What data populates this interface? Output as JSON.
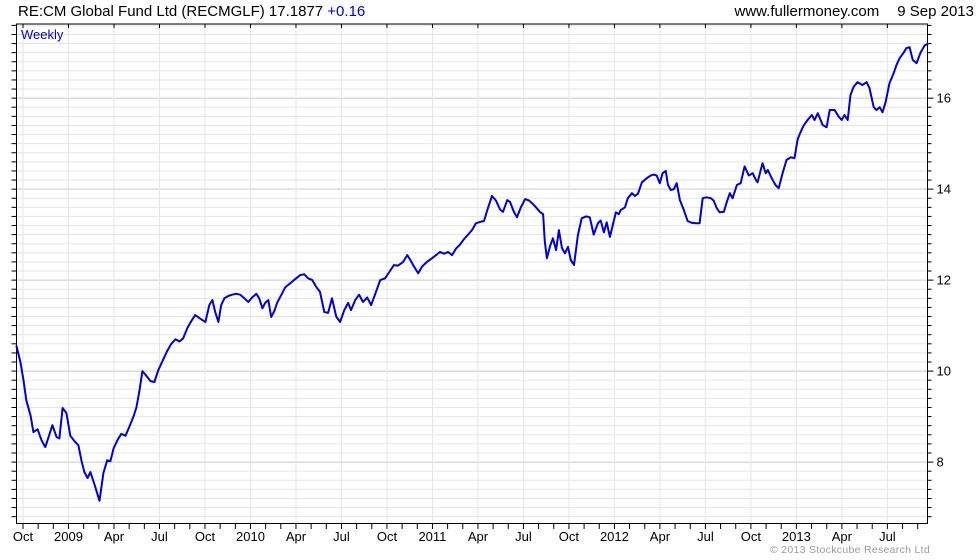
{
  "header": {
    "title": "RE:CM Global Fund Ltd (RECMGLF) 17.1877",
    "change": "+0.16",
    "website": "www.fullermoney.com",
    "date": "9 Sep 2013"
  },
  "chart": {
    "frequency_label": "Weekly",
    "copyright": "© 2013 Stockcube Research Ltd"
  },
  "colors": {
    "line": "#0000cc",
    "grid_minor": "#e5e5e5",
    "grid_major": "#c9c9c9",
    "axis": "#000000",
    "tick_label": "#000000"
  },
  "chart_data": {
    "type": "line",
    "title": "RE:CM Global Fund Ltd (RECMGLF) weekly price",
    "legend": "Weekly",
    "last_value": 17.1877,
    "change": 0.16,
    "x_unit": "weeks since late Sep 2008",
    "x_axis": {
      "total_weeks": 259,
      "month_tick_first_week": 1.85,
      "month_tick_step_weeks": 4.3113,
      "month_tick_count": 60,
      "labels": [
        {
          "label": "Oct",
          "month_index": 0
        },
        {
          "label": "2009",
          "month_index": 3
        },
        {
          "label": "Apr",
          "month_index": 6
        },
        {
          "label": "Jul",
          "month_index": 9
        },
        {
          "label": "Oct",
          "month_index": 12
        },
        {
          "label": "2010",
          "month_index": 15
        },
        {
          "label": "Apr",
          "month_index": 18
        },
        {
          "label": "Jul",
          "month_index": 21
        },
        {
          "label": "Oct",
          "month_index": 24
        },
        {
          "label": "2011",
          "month_index": 27
        },
        {
          "label": "Apr",
          "month_index": 30
        },
        {
          "label": "Jul",
          "month_index": 33
        },
        {
          "label": "Oct",
          "month_index": 36
        },
        {
          "label": "2012",
          "month_index": 39
        },
        {
          "label": "Apr",
          "month_index": 42
        },
        {
          "label": "Jul",
          "month_index": 45
        },
        {
          "label": "Oct",
          "month_index": 48
        },
        {
          "label": "2013",
          "month_index": 51
        },
        {
          "label": "Apr",
          "month_index": 54
        },
        {
          "label": "Jul",
          "month_index": 57
        }
      ]
    },
    "y_axis": {
      "min": 6.65,
      "max": 17.63,
      "major_ticks": [
        8,
        10,
        12,
        14,
        16
      ],
      "minor_step": 0.2,
      "grid": true
    },
    "points": [
      [
        0,
        10.55
      ],
      [
        1.1,
        10.2
      ],
      [
        2,
        9.8
      ],
      [
        2.8,
        9.36
      ],
      [
        4,
        9.02
      ],
      [
        4.8,
        8.66
      ],
      [
        6,
        8.72
      ],
      [
        7.1,
        8.48
      ],
      [
        8.2,
        8.33
      ],
      [
        9.4,
        8.62
      ],
      [
        10.2,
        8.81
      ],
      [
        11.4,
        8.55
      ],
      [
        12.2,
        8.52
      ],
      [
        13.1,
        9.19
      ],
      [
        14.2,
        9.08
      ],
      [
        15.3,
        8.58
      ],
      [
        16.5,
        8.46
      ],
      [
        17.6,
        8.37
      ],
      [
        18.5,
        8.02
      ],
      [
        19.3,
        7.78
      ],
      [
        20.2,
        7.65
      ],
      [
        21,
        7.78
      ],
      [
        22.2,
        7.5
      ],
      [
        23.6,
        7.15
      ],
      [
        24.7,
        7.76
      ],
      [
        25.8,
        8.04
      ],
      [
        26.7,
        8.02
      ],
      [
        27.6,
        8.3
      ],
      [
        28.7,
        8.48
      ],
      [
        29.8,
        8.62
      ],
      [
        31,
        8.58
      ],
      [
        32.1,
        8.78
      ],
      [
        33.2,
        8.99
      ],
      [
        34.1,
        9.2
      ],
      [
        34.9,
        9.55
      ],
      [
        35.8,
        10.0
      ],
      [
        36.9,
        9.9
      ],
      [
        38.1,
        9.78
      ],
      [
        39.2,
        9.76
      ],
      [
        40.3,
        10.02
      ],
      [
        41.5,
        10.22
      ],
      [
        42.9,
        10.45
      ],
      [
        44,
        10.6
      ],
      [
        45.2,
        10.7
      ],
      [
        46.3,
        10.65
      ],
      [
        47.4,
        10.72
      ],
      [
        48.6,
        10.95
      ],
      [
        49.7,
        11.1
      ],
      [
        50.8,
        11.23
      ],
      [
        52.3,
        11.15
      ],
      [
        53.7,
        11.08
      ],
      [
        54.8,
        11.45
      ],
      [
        55.7,
        11.56
      ],
      [
        56.5,
        11.3
      ],
      [
        57.4,
        11.08
      ],
      [
        58.2,
        11.45
      ],
      [
        59.1,
        11.6
      ],
      [
        60.2,
        11.65
      ],
      [
        61.3,
        11.68
      ],
      [
        62.5,
        11.7
      ],
      [
        63.6,
        11.68
      ],
      [
        64.8,
        11.6
      ],
      [
        65.9,
        11.52
      ],
      [
        67,
        11.62
      ],
      [
        68.2,
        11.7
      ],
      [
        69,
        11.6
      ],
      [
        69.9,
        11.38
      ],
      [
        70.7,
        11.5
      ],
      [
        71.6,
        11.56
      ],
      [
        72.4,
        11.19
      ],
      [
        73.3,
        11.32
      ],
      [
        74.1,
        11.5
      ],
      [
        75.3,
        11.68
      ],
      [
        76.4,
        11.84
      ],
      [
        77.8,
        11.93
      ],
      [
        79.2,
        12.02
      ],
      [
        80.7,
        12.11
      ],
      [
        81.8,
        12.13
      ],
      [
        82.9,
        12.04
      ],
      [
        84.1,
        12.0
      ],
      [
        85.2,
        11.85
      ],
      [
        86.3,
        11.74
      ],
      [
        87.5,
        11.3
      ],
      [
        88.6,
        11.28
      ],
      [
        89.7,
        11.6
      ],
      [
        90.9,
        11.2
      ],
      [
        92,
        11.08
      ],
      [
        93.2,
        11.34
      ],
      [
        94.3,
        11.5
      ],
      [
        95.1,
        11.34
      ],
      [
        96.3,
        11.56
      ],
      [
        97.4,
        11.68
      ],
      [
        98.5,
        11.52
      ],
      [
        99.7,
        11.62
      ],
      [
        100.8,
        11.45
      ],
      [
        102,
        11.7
      ],
      [
        103.4,
        12.0
      ],
      [
        104.8,
        12.04
      ],
      [
        106.2,
        12.2
      ],
      [
        107.3,
        12.33
      ],
      [
        108.5,
        12.32
      ],
      [
        109.9,
        12.4
      ],
      [
        111.1,
        12.55
      ],
      [
        111.9,
        12.45
      ],
      [
        113,
        12.3
      ],
      [
        114.2,
        12.15
      ],
      [
        115.3,
        12.3
      ],
      [
        116.7,
        12.4
      ],
      [
        118.1,
        12.48
      ],
      [
        119.3,
        12.55
      ],
      [
        120.4,
        12.62
      ],
      [
        121.6,
        12.58
      ],
      [
        122.7,
        12.62
      ],
      [
        123.8,
        12.55
      ],
      [
        125,
        12.7
      ],
      [
        126.1,
        12.78
      ],
      [
        127.2,
        12.9
      ],
      [
        128.4,
        13.0
      ],
      [
        129.5,
        13.1
      ],
      [
        130.6,
        13.25
      ],
      [
        131.8,
        13.28
      ],
      [
        132.9,
        13.3
      ],
      [
        134.1,
        13.6
      ],
      [
        135.2,
        13.85
      ],
      [
        136.3,
        13.75
      ],
      [
        137.5,
        13.55
      ],
      [
        138.3,
        13.5
      ],
      [
        139.5,
        13.76
      ],
      [
        140.3,
        13.72
      ],
      [
        141.4,
        13.5
      ],
      [
        142.3,
        13.38
      ],
      [
        143.4,
        13.6
      ],
      [
        144.6,
        13.78
      ],
      [
        145.7,
        13.75
      ],
      [
        146.6,
        13.69
      ],
      [
        147.7,
        13.6
      ],
      [
        148.8,
        13.5
      ],
      [
        149.7,
        13.45
      ],
      [
        150.2,
        12.85
      ],
      [
        150.8,
        12.48
      ],
      [
        151.7,
        12.75
      ],
      [
        152.5,
        12.92
      ],
      [
        153.4,
        12.66
      ],
      [
        154.2,
        13.1
      ],
      [
        155.1,
        12.7
      ],
      [
        155.9,
        12.59
      ],
      [
        156.8,
        12.73
      ],
      [
        157.6,
        12.44
      ],
      [
        158.5,
        12.33
      ],
      [
        159.6,
        12.99
      ],
      [
        160.7,
        13.36
      ],
      [
        161.9,
        13.4
      ],
      [
        163,
        13.38
      ],
      [
        164.1,
        13.0
      ],
      [
        165.3,
        13.25
      ],
      [
        166.1,
        13.31
      ],
      [
        167,
        13.05
      ],
      [
        167.8,
        13.27
      ],
      [
        168.7,
        12.95
      ],
      [
        169.5,
        13.2
      ],
      [
        170.4,
        13.49
      ],
      [
        171.2,
        13.45
      ],
      [
        171.8,
        13.54
      ],
      [
        173,
        13.6
      ],
      [
        173.8,
        13.8
      ],
      [
        175,
        13.91
      ],
      [
        175.8,
        13.85
      ],
      [
        176.7,
        13.9
      ],
      [
        177.8,
        14.15
      ],
      [
        179.2,
        14.24
      ],
      [
        180.3,
        14.3
      ],
      [
        181.2,
        14.32
      ],
      [
        182,
        14.3
      ],
      [
        182.9,
        14.13
      ],
      [
        183.7,
        14.35
      ],
      [
        184.6,
        14.4
      ],
      [
        185.2,
        14.1
      ],
      [
        186,
        13.98
      ],
      [
        186.9,
        14.0
      ],
      [
        187.7,
        14.13
      ],
      [
        188.6,
        13.76
      ],
      [
        189.7,
        13.55
      ],
      [
        190.8,
        13.3
      ],
      [
        192,
        13.26
      ],
      [
        193.1,
        13.25
      ],
      [
        194.2,
        13.25
      ],
      [
        195.1,
        13.8
      ],
      [
        196.2,
        13.82
      ],
      [
        197.4,
        13.8
      ],
      [
        198.2,
        13.75
      ],
      [
        199.1,
        13.58
      ],
      [
        199.9,
        13.49
      ],
      [
        201.1,
        13.5
      ],
      [
        201.9,
        13.71
      ],
      [
        202.8,
        13.91
      ],
      [
        203.6,
        13.8
      ],
      [
        204.8,
        14.09
      ],
      [
        205.9,
        14.13
      ],
      [
        207,
        14.5
      ],
      [
        208.2,
        14.3
      ],
      [
        209.3,
        14.35
      ],
      [
        210.2,
        14.2
      ],
      [
        210.7,
        14.15
      ],
      [
        212.1,
        14.57
      ],
      [
        213,
        14.35
      ],
      [
        213.6,
        14.42
      ],
      [
        214.7,
        14.24
      ],
      [
        215.8,
        14.09
      ],
      [
        216.7,
        14.02
      ],
      [
        217.8,
        14.35
      ],
      [
        218.9,
        14.64
      ],
      [
        220.1,
        14.7
      ],
      [
        221.2,
        14.68
      ],
      [
        222.1,
        15.1
      ],
      [
        222.9,
        15.25
      ],
      [
        223.8,
        15.4
      ],
      [
        224.9,
        15.52
      ],
      [
        226.1,
        15.63
      ],
      [
        226.9,
        15.52
      ],
      [
        227.8,
        15.67
      ],
      [
        229.2,
        15.41
      ],
      [
        230.3,
        15.36
      ],
      [
        231.2,
        15.74
      ],
      [
        232.6,
        15.74
      ],
      [
        233.7,
        15.6
      ],
      [
        234.6,
        15.52
      ],
      [
        235.4,
        15.63
      ],
      [
        236.3,
        15.52
      ],
      [
        237.1,
        16.07
      ],
      [
        238,
        16.25
      ],
      [
        239.1,
        16.35
      ],
      [
        240.5,
        16.29
      ],
      [
        241.7,
        16.35
      ],
      [
        242.5,
        16.22
      ],
      [
        243.7,
        15.8
      ],
      [
        244.5,
        15.74
      ],
      [
        245.4,
        15.8
      ],
      [
        246.2,
        15.69
      ],
      [
        247.1,
        15.91
      ],
      [
        248.2,
        16.33
      ],
      [
        249.4,
        16.55
      ],
      [
        250.2,
        16.73
      ],
      [
        251.1,
        16.88
      ],
      [
        252.2,
        17.0
      ],
      [
        253,
        17.1
      ],
      [
        253.9,
        17.12
      ],
      [
        254.8,
        16.84
      ],
      [
        255.9,
        16.77
      ],
      [
        257,
        17.0
      ],
      [
        258.2,
        17.16
      ],
      [
        259,
        17.19
      ]
    ]
  }
}
